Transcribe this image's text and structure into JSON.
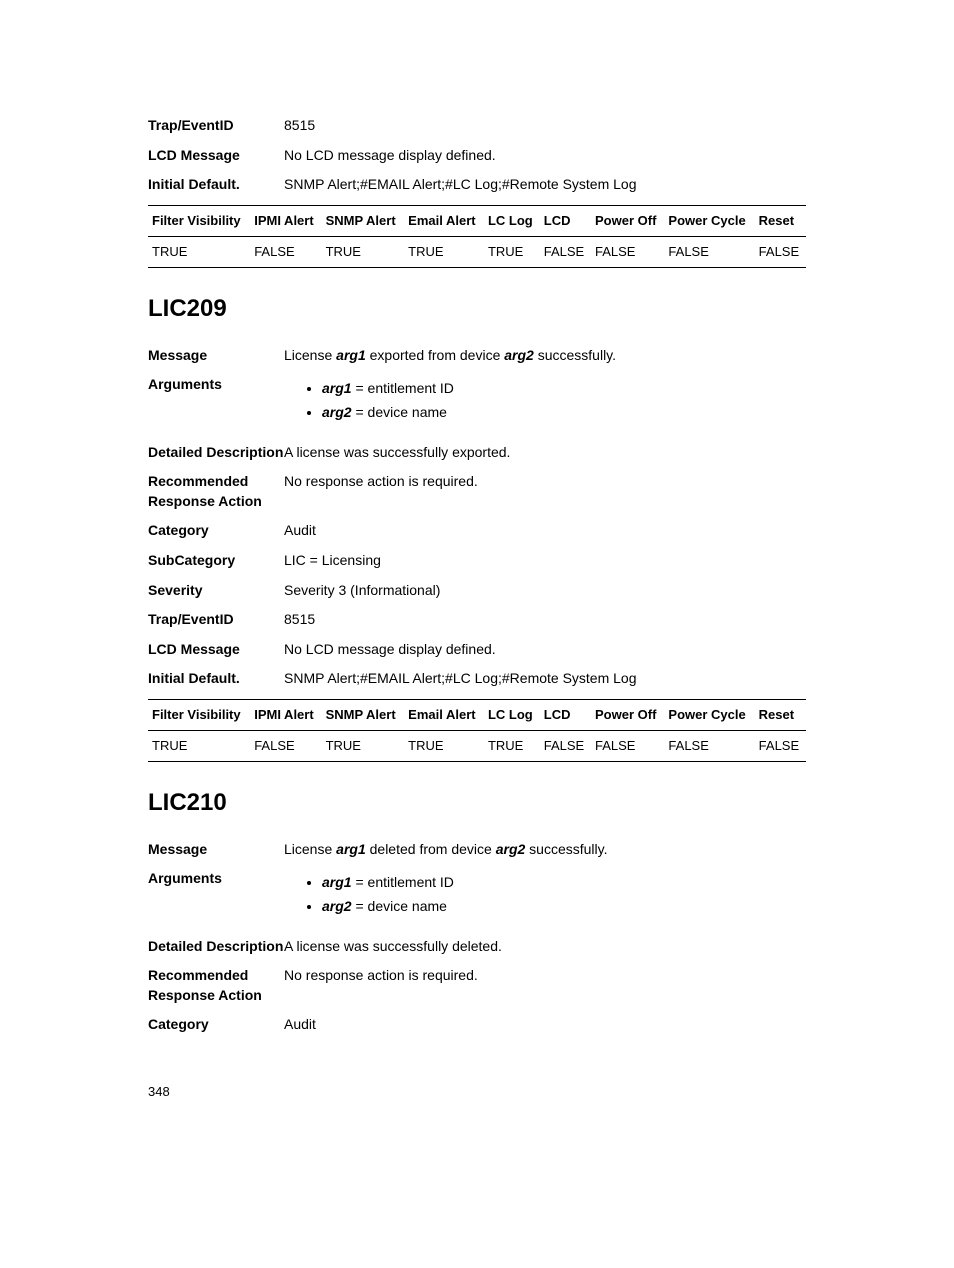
{
  "section0": {
    "trap_event_id_label": "Trap/EventID",
    "trap_event_id": "8515",
    "lcd_message_label": "LCD Message",
    "lcd_message": "No LCD message display defined.",
    "initial_default_label": "Initial Default.",
    "initial_default": "SNMP Alert;#EMAIL Alert;#LC Log;#Remote System Log"
  },
  "table0": {
    "headers": [
      "Filter Visibility",
      "IPMI Alert",
      "SNMP Alert",
      "Email Alert",
      "LC Log",
      "LCD",
      "Power Off",
      "Power Cycle",
      "Reset"
    ],
    "row": [
      "TRUE",
      "FALSE",
      "TRUE",
      "TRUE",
      "TRUE",
      "FALSE",
      "FALSE",
      "FALSE",
      "FALSE"
    ]
  },
  "lic209": {
    "heading": "LIC209",
    "message_label": "Message",
    "message_pre": "License ",
    "message_arg1": "arg1",
    "message_mid": " exported from device ",
    "message_arg2": "arg2",
    "message_post": " successfully.",
    "arguments_label": "Arguments",
    "arg1_key": "arg1",
    "arg1_eq": " = ",
    "arg1_val": "entitlement ID",
    "arg2_key": "arg2",
    "arg2_eq": " = ",
    "arg2_val": "device name",
    "detailed_label": "Detailed Description",
    "detailed": "A license was successfully exported.",
    "recommended_label": "Recommended Response Action",
    "recommended": "No response action is required.",
    "category_label": "Category",
    "category": "Audit",
    "subcategory_label": "SubCategory",
    "subcategory": "LIC = Licensing",
    "severity_label": "Severity",
    "severity": "Severity 3 (Informational)",
    "trap_label": "Trap/EventID",
    "trap": "8515",
    "lcd_label": "LCD Message",
    "lcd": "No LCD message display defined.",
    "initial_label": "Initial Default.",
    "initial": "SNMP Alert;#EMAIL Alert;#LC Log;#Remote System Log"
  },
  "table1": {
    "headers": [
      "Filter Visibility",
      "IPMI Alert",
      "SNMP Alert",
      "Email Alert",
      "LC Log",
      "LCD",
      "Power Off",
      "Power Cycle",
      "Reset"
    ],
    "row": [
      "TRUE",
      "FALSE",
      "TRUE",
      "TRUE",
      "TRUE",
      "FALSE",
      "FALSE",
      "FALSE",
      "FALSE"
    ]
  },
  "lic210": {
    "heading": "LIC210",
    "message_label": "Message",
    "message_pre": "License ",
    "message_arg1": "arg1",
    "message_mid": " deleted from device ",
    "message_arg2": "arg2",
    "message_post": " successfully.",
    "arguments_label": "Arguments",
    "arg1_key": "arg1",
    "arg1_eq": " = ",
    "arg1_val": "entitlement ID",
    "arg2_key": "arg2",
    "arg2_eq": " = ",
    "arg2_val": "device name",
    "detailed_label": "Detailed Description",
    "detailed": "A license was successfully deleted.",
    "recommended_label": "Recommended Response Action",
    "recommended": "No response action is required.",
    "category_label": "Category",
    "category": "Audit"
  },
  "page_number": "348"
}
